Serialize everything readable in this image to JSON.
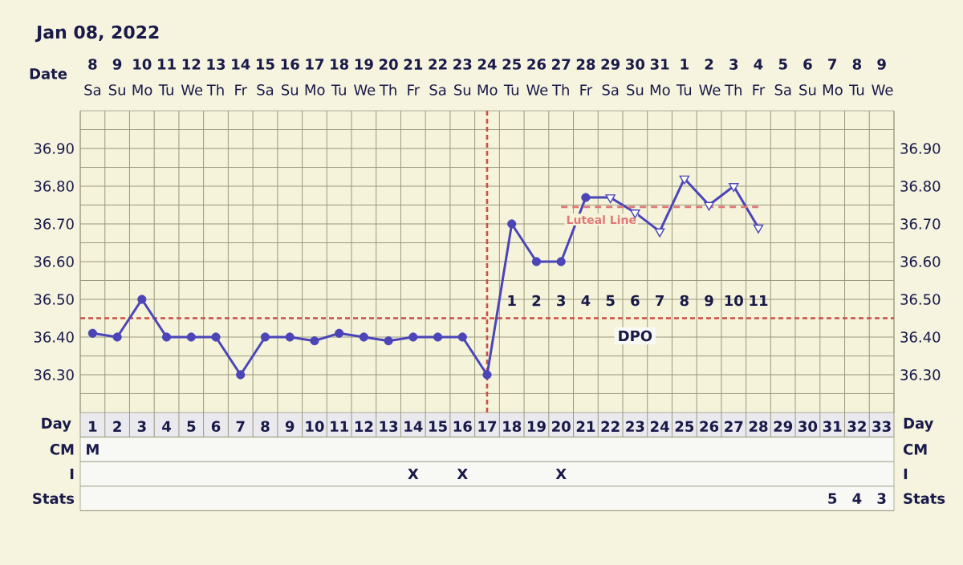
{
  "chart_data": [
    {
      "type": "line",
      "title": "Jan 08, 2022",
      "xlabel": "Day",
      "x2label": "Date",
      "categories": [
        "1",
        "2",
        "3",
        "4",
        "5",
        "6",
        "7",
        "8",
        "9",
        "10",
        "11",
        "12",
        "13",
        "14",
        "15",
        "16",
        "17",
        "18",
        "19",
        "20",
        "21",
        "22",
        "23",
        "24",
        "25",
        "26",
        "27",
        "28",
        "29",
        "30",
        "31",
        "32",
        "33"
      ],
      "series": [
        {
          "color": "#4b45b8",
          "marker": "none",
          "values": [
            36.41,
            36.4,
            36.5,
            36.4,
            36.4,
            36.4,
            36.3,
            36.4,
            36.4,
            36.39,
            36.41,
            36.4,
            36.39,
            36.4,
            36.4,
            36.4,
            36.3,
            36.7,
            36.6,
            36.6,
            36.77,
            36.77,
            36.73,
            36.68,
            36.82,
            36.75,
            36.8,
            36.69,
            null,
            null,
            null,
            null,
            null
          ]
        },
        {
          "type": "scatter",
          "color": "#4b45b8",
          "marker": "circle",
          "values": [
            36.41,
            36.4,
            36.5,
            36.4,
            36.4,
            36.4,
            36.3,
            36.4,
            36.4,
            36.39,
            36.41,
            36.4,
            36.39,
            36.4,
            36.4,
            36.4,
            36.3,
            36.7,
            36.6,
            36.6,
            36.77,
            null,
            null,
            null,
            null,
            null,
            null,
            null,
            null,
            null,
            null,
            null,
            null
          ]
        },
        {
          "type": "scatter",
          "color": "#4b45b8",
          "marker": "triangle",
          "values": [
            null,
            null,
            null,
            null,
            null,
            null,
            null,
            null,
            null,
            null,
            null,
            null,
            null,
            null,
            null,
            null,
            null,
            null,
            null,
            null,
            null,
            36.77,
            36.73,
            36.68,
            36.82,
            36.75,
            36.8,
            36.69,
            null,
            null,
            null,
            null,
            null
          ]
        },
        {
          "name": "Luteal Line",
          "color": "#e07878",
          "line_style": "dashed",
          "marker": "none",
          "x": [
            "20",
            "28"
          ],
          "values": [
            36.745,
            36.745
          ]
        }
      ],
      "ylim": [
        36.2,
        37.0
      ],
      "yticks": [
        {
          "value": 36.25,
          "label": null
        },
        {
          "value": 36.3,
          "label": "36.30"
        },
        {
          "value": 36.35,
          "label": null
        },
        {
          "value": 36.4,
          "label": "36.40"
        },
        {
          "value": 36.5,
          "label": "36.50"
        },
        {
          "value": 36.55,
          "label": null
        },
        {
          "value": 36.6,
          "label": "36.60"
        },
        {
          "value": 36.65,
          "label": null
        },
        {
          "value": 36.7,
          "label": "36.70"
        },
        {
          "value": 36.75,
          "label": null
        },
        {
          "value": 36.8,
          "label": "36.80"
        },
        {
          "value": 36.85,
          "label": null
        },
        {
          "value": 36.9,
          "label": "36.90"
        },
        {
          "value": 36.95,
          "label": null
        }
      ],
      "y2lim": [
        36.2,
        37.0
      ],
      "y2ticks": [
        {
          "value": 36.3,
          "label": "36.30"
        },
        {
          "value": 36.4,
          "label": "36.40"
        },
        {
          "value": 36.5,
          "label": "36.50"
        },
        {
          "value": 36.6,
          "label": "36.60"
        },
        {
          "value": 36.7,
          "label": "36.70"
        },
        {
          "value": 36.8,
          "label": "36.80"
        },
        {
          "value": 36.9,
          "label": "36.90"
        }
      ],
      "x2lim": [
        "2022-01-07T12:00",
        "2022-02-09T12:00"
      ],
      "x2ticks": [
        {
          "value": "2022-01-08",
          "label": "**8** Sa"
        },
        {
          "value": "2022-01-09",
          "label": "**9** Su"
        },
        {
          "value": "2022-01-10",
          "label": "**10** Mo"
        },
        {
          "value": "2022-01-11",
          "label": "**11** Tu"
        },
        {
          "value": "2022-01-12",
          "label": "**12** We"
        },
        {
          "value": "2022-01-13",
          "label": "**13** Th"
        },
        {
          "value": "2022-01-14",
          "label": "**14** Fr"
        },
        {
          "value": "2022-01-15",
          "label": "**15** Sa"
        },
        {
          "value": "2022-01-16",
          "label": "**16** Su"
        },
        {
          "value": "2022-01-17",
          "label": "**17** Mo"
        },
        {
          "value": "2022-01-18",
          "label": "**18** Tu"
        },
        {
          "value": "2022-01-19",
          "label": "**19** We"
        },
        {
          "value": "2022-01-20",
          "label": "**20** Th"
        },
        {
          "value": "2022-01-21",
          "label": "**21** Fr"
        },
        {
          "value": "2022-01-22",
          "label": "**22** Sa"
        },
        {
          "value": "2022-01-23",
          "label": "**23** Su"
        },
        {
          "value": "2022-01-24",
          "label": "**24** Mo"
        },
        {
          "value": "2022-01-25",
          "label": "**25** Tu"
        },
        {
          "value": "2022-01-26",
          "label": "**26** We"
        },
        {
          "value": "2022-01-27",
          "label": "**27** Th"
        },
        {
          "value": "2022-01-28",
          "label": "**28** Fr"
        },
        {
          "value": "2022-01-29",
          "label": "**29** Sa"
        },
        {
          "value": "2022-01-30",
          "label": "**30** Su"
        },
        {
          "value": "2022-01-31",
          "label": "**31** Mo"
        },
        {
          "value": "2022-02-01",
          "label": "**1** Tu"
        },
        {
          "value": "2022-02-02",
          "label": "**2** We"
        },
        {
          "value": "2022-02-03",
          "label": "**3** Th"
        },
        {
          "value": "2022-02-04",
          "label": "**4** Fr"
        },
        {
          "value": "2022-02-05",
          "label": "**5** Sa"
        },
        {
          "value": "2022-02-06",
          "label": "**6** Su"
        },
        {
          "value": "2022-02-07",
          "label": "**7** Mo"
        },
        {
          "value": "2022-02-08",
          "label": "**8** Tu"
        },
        {
          "value": "2022-02-09",
          "label": "**9** We"
        }
      ],
      "grid": true,
      "ref_lines": [
        {
          "axis": "y",
          "value": 36.45,
          "color": "#c8504a",
          "line_style": "dashed"
        },
        {
          "axis": "x",
          "value": "17",
          "color": "#c8504a",
          "line_style": "dashed"
        }
      ],
      "annotations": [
        "1",
        "2",
        "3",
        "4",
        "5",
        "6",
        "7",
        "8",
        "9",
        "10",
        "11",
        "DPO"
      ]
    },
    {
      "type": "heatmap",
      "tick_labels": "y",
      "categories": [
        "1",
        "2",
        "3",
        "4",
        "5",
        "6",
        "7",
        "8",
        "9",
        "10",
        "11",
        "12",
        "13",
        "14",
        "15",
        "16",
        "17",
        "18",
        "19",
        "20",
        "21",
        "22",
        "23",
        "24",
        "25",
        "26",
        "27",
        "28",
        "29",
        "30",
        "31",
        "32",
        "33"
      ],
      "y_categories": [
        "CM",
        "I",
        "Stats"
      ],
      "y2_categories": [
        "CM",
        "I",
        "Stats"
      ],
      "cells": [
        [
          null,
          null,
          null,
          null,
          null,
          null,
          null,
          null,
          null,
          null,
          null,
          null,
          null,
          null,
          null,
          null,
          null,
          null,
          null,
          null,
          null,
          null,
          null,
          null,
          null,
          null,
          null,
          null,
          null,
          null,
          null,
          null,
          null
        ],
        [
          null,
          null,
          null,
          null,
          null,
          null,
          null,
          null,
          null,
          null,
          null,
          null,
          null,
          null,
          null,
          null,
          null,
          null,
          null,
          null,
          null,
          null,
          null,
          null,
          null,
          null,
          null,
          null,
          null,
          null,
          null,
          null,
          null
        ],
        [
          null,
          null,
          null,
          null,
          null,
          null,
          null,
          null,
          null,
          null,
          null,
          null,
          null,
          null,
          null,
          null,
          null,
          null,
          null,
          null,
          null,
          null,
          null,
          null,
          null,
          null,
          null,
          null,
          null,
          null,
          null,
          null,
          null
        ]
      ],
      "cell_labels": [
        [
          "M",
          null,
          null,
          null,
          null,
          null,
          null,
          null,
          null,
          null,
          null,
          null,
          null,
          null,
          null,
          null,
          null,
          null,
          null,
          null,
          null,
          null,
          null,
          null,
          null,
          null,
          null,
          null,
          null,
          null,
          null,
          null,
          null
        ],
        [
          null,
          null,
          null,
          null,
          null,
          null,
          null,
          null,
          null,
          null,
          null,
          null,
          null,
          "X",
          null,
          "X",
          null,
          null,
          null,
          "X",
          null,
          null,
          null,
          null,
          null,
          null,
          null,
          null,
          null,
          null,
          null,
          null,
          null
        ],
        [
          null,
          null,
          null,
          null,
          null,
          null,
          null,
          null,
          null,
          null,
          null,
          null,
          null,
          null,
          null,
          null,
          null,
          null,
          null,
          null,
          null,
          null,
          null,
          null,
          null,
          null,
          null,
          null,
          null,
          null,
          "5",
          "4",
          "3"
        ]
      ]
    }
  ]
}
